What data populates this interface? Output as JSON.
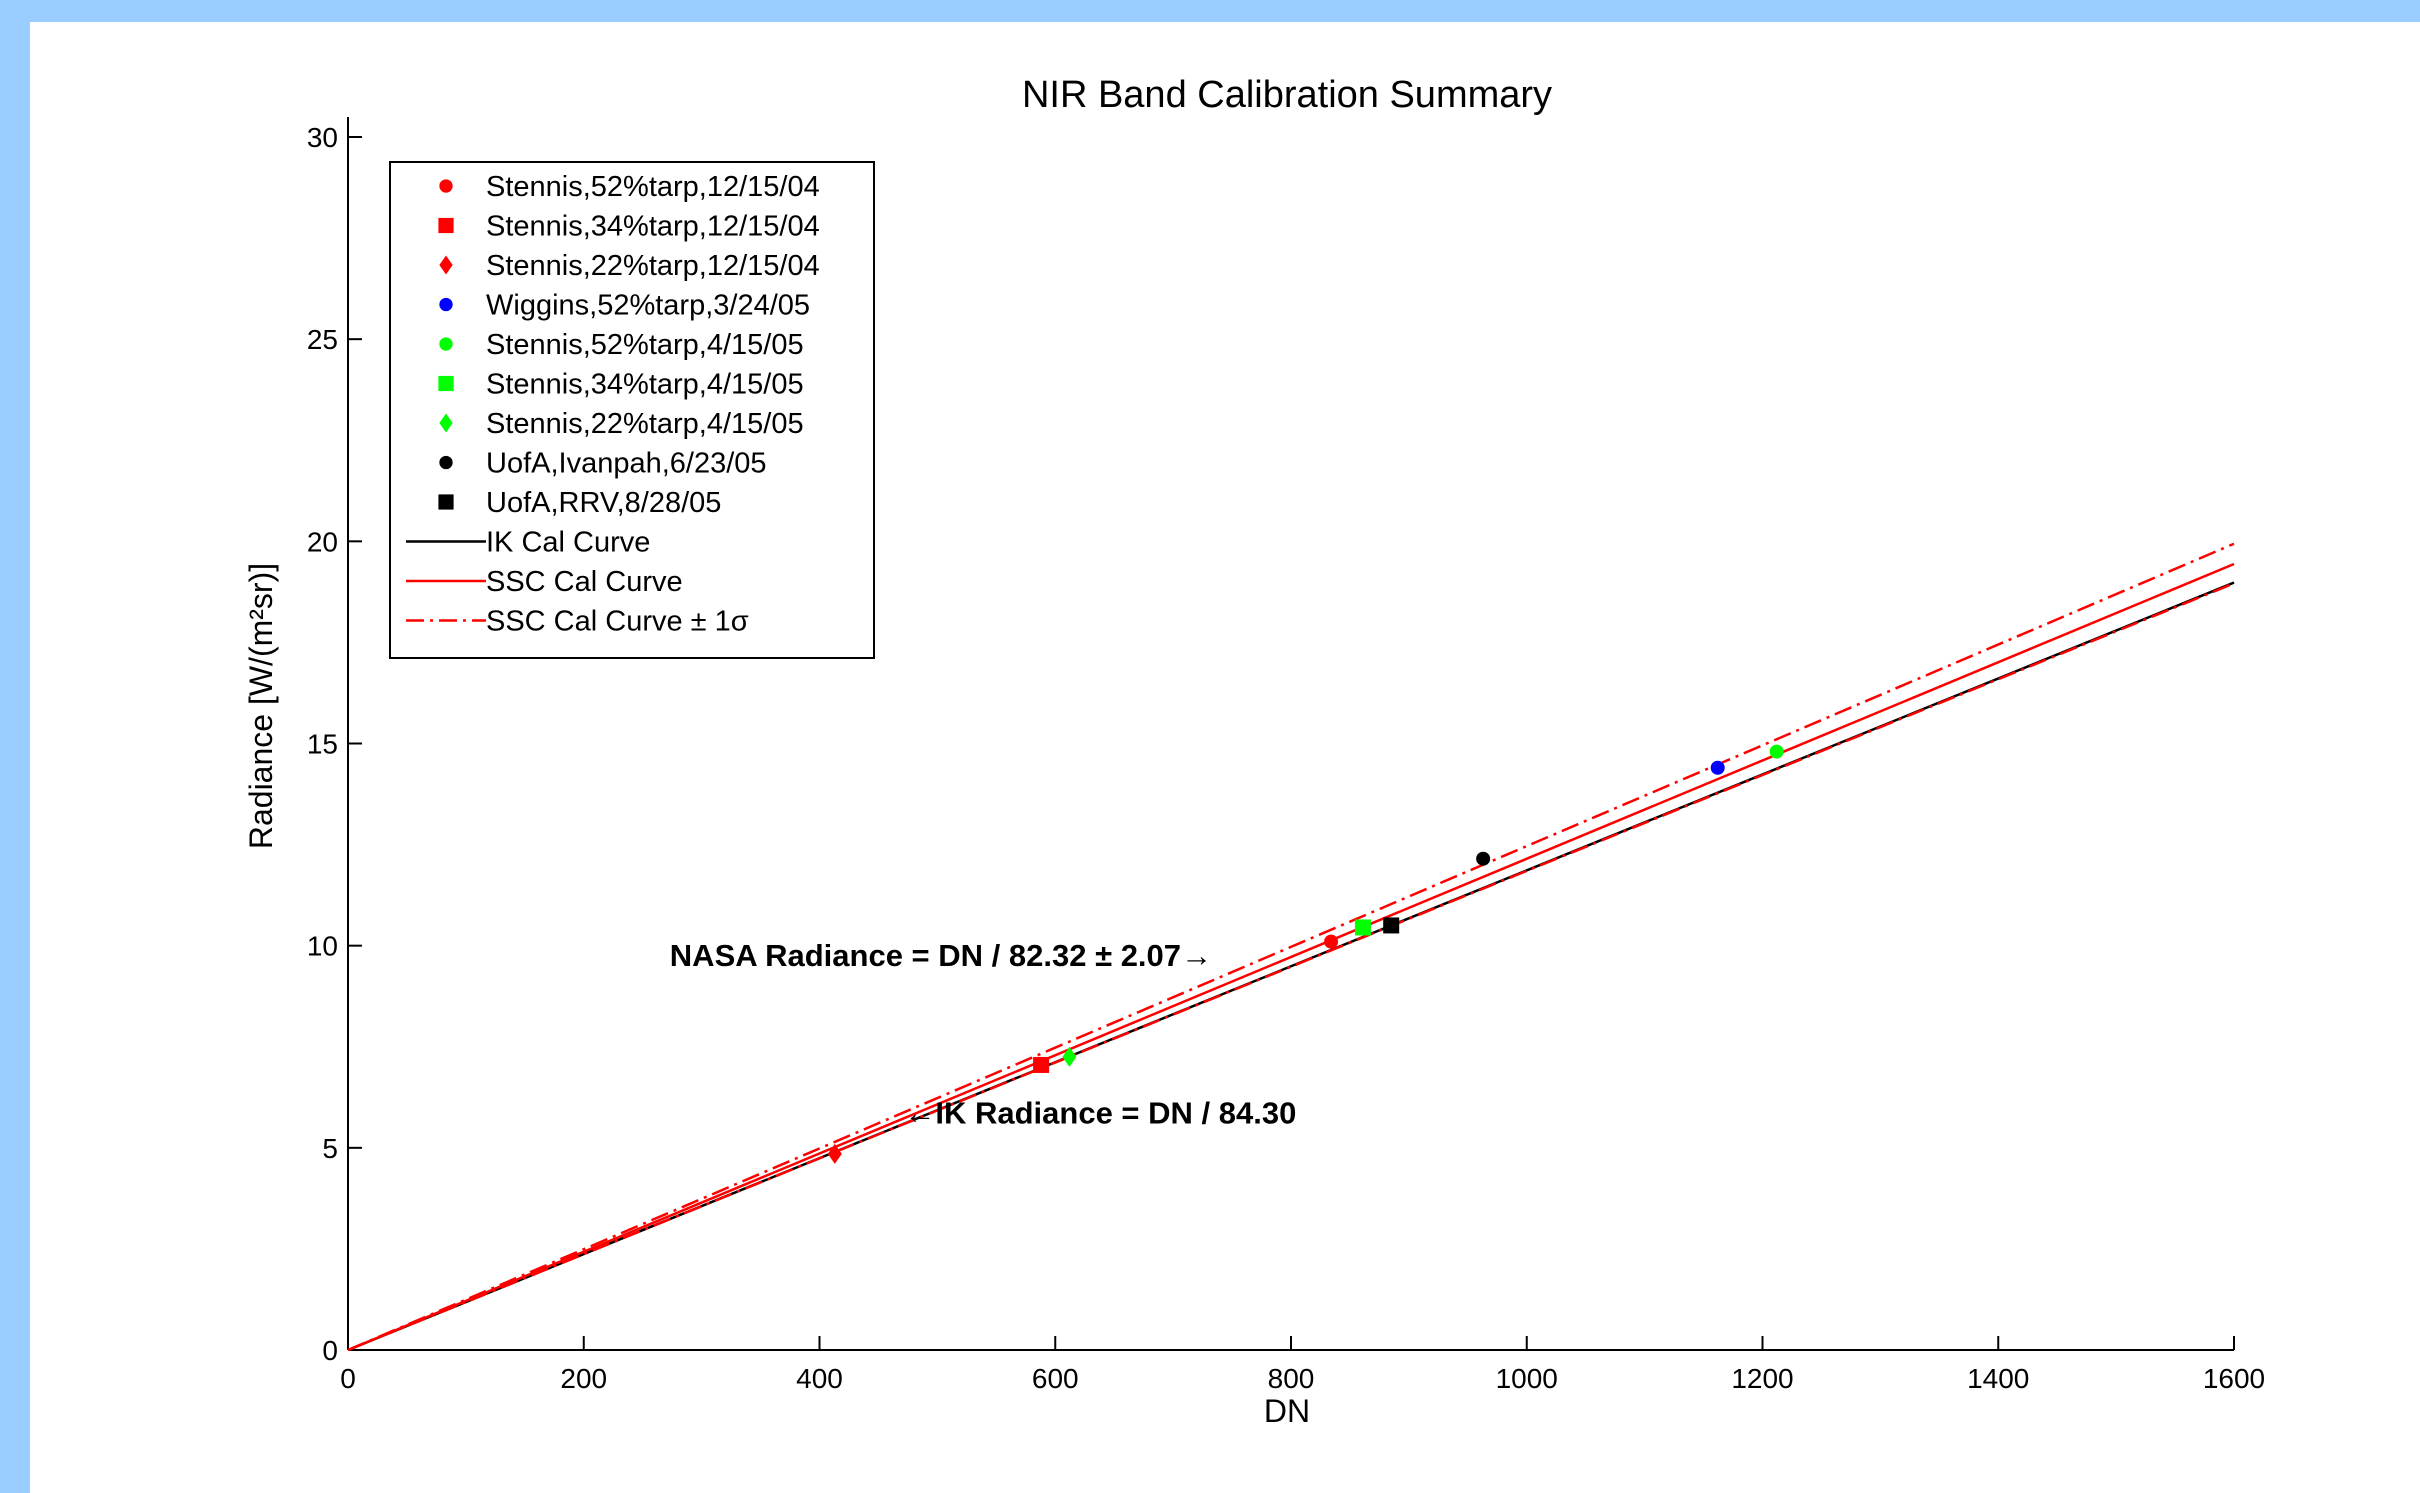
{
  "colors": {
    "background": "#99ccff",
    "red": "#ff0000",
    "blue": "#0000ff",
    "green": "#00ff00",
    "black": "#000000"
  },
  "chart_data": {
    "type": "scatter",
    "title": "NIR Band Calibration Summary",
    "xlabel": "DN",
    "ylabel": "Radiance [W/(m²sr)]",
    "xlim": [
      0,
      1600
    ],
    "ylim": [
      0,
      30
    ],
    "x_ticks": [
      0,
      200,
      400,
      600,
      800,
      1000,
      1200,
      1400,
      1600
    ],
    "y_ticks": [
      0,
      5,
      10,
      15,
      20,
      25,
      30
    ],
    "grid": false,
    "legend_position": "top-left",
    "series": [
      {
        "name": "Stennis,52%tarp,12/15/04",
        "marker": "circle",
        "color": "#ff0000",
        "points": [
          [
            834,
            10.1
          ]
        ]
      },
      {
        "name": "Stennis,34%tarp,12/15/04",
        "marker": "square",
        "color": "#ff0000",
        "points": [
          [
            588,
            7.05
          ]
        ]
      },
      {
        "name": "Stennis,22%tarp,12/15/04",
        "marker": "diamond",
        "color": "#ff0000",
        "points": [
          [
            413,
            4.85
          ]
        ]
      },
      {
        "name": "Wiggins,52%tarp,3/24/05",
        "marker": "circle",
        "color": "#0000ff",
        "points": [
          [
            1162,
            14.4
          ]
        ]
      },
      {
        "name": "Stennis,52%tarp,4/15/05",
        "marker": "circle",
        "color": "#00ff00",
        "points": [
          [
            1212,
            14.8
          ]
        ]
      },
      {
        "name": "Stennis,34%tarp,4/15/05",
        "marker": "square",
        "color": "#00ff00",
        "points": [
          [
            861,
            10.45
          ]
        ]
      },
      {
        "name": "Stennis,22%tarp,4/15/05",
        "marker": "diamond",
        "color": "#00ff00",
        "points": [
          [
            612,
            7.25
          ]
        ]
      },
      {
        "name": "UofA,Ivanpah,6/23/05",
        "marker": "circle",
        "color": "#000000",
        "points": [
          [
            963,
            12.15
          ]
        ]
      },
      {
        "name": "UofA,RRV,8/28/05",
        "marker": "square",
        "color": "#000000",
        "points": [
          [
            885,
            10.5
          ]
        ]
      }
    ],
    "lines": [
      {
        "name": "IK Cal Curve",
        "color": "#000000",
        "style": "solid",
        "points": [
          [
            0,
            0
          ],
          [
            1600,
            18.98
          ]
        ]
      },
      {
        "name": "SSC Cal Curve",
        "color": "#ff0000",
        "style": "solid",
        "points": [
          [
            0,
            0
          ],
          [
            1600,
            19.44
          ]
        ]
      },
      {
        "name": "SSC Cal Curve ± 1σ",
        "color": "#ff0000",
        "style": "dashdot",
        "points": [
          [
            0,
            0
          ],
          [
            1600,
            19.94
          ]
        ]
      },
      {
        "name": "SSC Cal Curve ± 1σ",
        "color": "#ff0000",
        "style": "dashdot",
        "points": [
          [
            0,
            0
          ],
          [
            1600,
            18.96
          ]
        ]
      }
    ],
    "annotations": [
      {
        "text": "NASA Radiance = DN / 82.32 ± 2.07→",
        "x": 273,
        "y": 9.5
      },
      {
        "text": "←IK Radiance = DN / 84.30",
        "x": 472,
        "y": 5.6
      }
    ]
  }
}
